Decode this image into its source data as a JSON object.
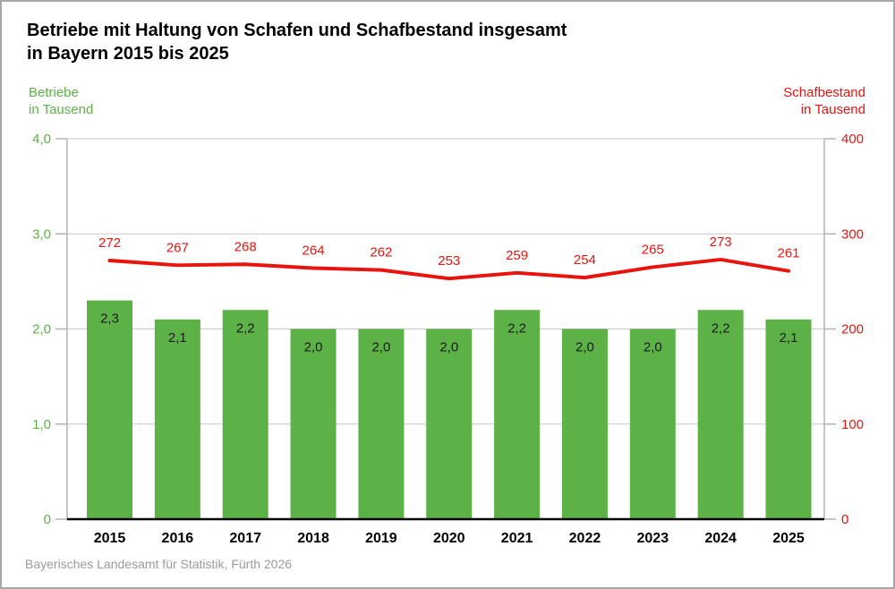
{
  "title": {
    "line1": "Betriebe mit Haltung von Schafen und Schafbestand insgesamt",
    "line2": "in Bayern 2015 bis 2025"
  },
  "footer": {
    "source": "Bayerisches Landesamt für Statistik, Fürth 2026"
  },
  "colors": {
    "bar_green": "#5cb247",
    "line_red": "#e8140e",
    "grid_gray": "#c9c9c9",
    "axis_gray": "#b3b3b3",
    "bottom_axis_black": "#000000",
    "bar_label_black": "#1a1a1a",
    "year_label_black": "#000000",
    "footer_gray": "#9a9a9a",
    "border_gray": "#a7a7a7"
  },
  "chart_data": {
    "type": "bar+line combo",
    "categories": [
      "2015",
      "2016",
      "2017",
      "2018",
      "2019",
      "2020",
      "2021",
      "2022",
      "2023",
      "2024",
      "2025"
    ],
    "series": [
      {
        "name": "Betriebe in Tausend",
        "type": "bar",
        "axis": "left",
        "color": "#5cb247",
        "values": [
          2.3,
          2.1,
          2.2,
          2.0,
          2.0,
          2.0,
          2.2,
          2.0,
          2.0,
          2.2,
          2.1
        ],
        "labels": [
          "2,3",
          "2,1",
          "2,2",
          "2,0",
          "2,0",
          "2,0",
          "2,2",
          "2,0",
          "2,0",
          "2,2",
          "2,1"
        ]
      },
      {
        "name": "Schafbestand in Tausend",
        "type": "line",
        "axis": "right",
        "color": "#e8140e",
        "values": [
          272,
          267,
          268,
          264,
          262,
          253,
          259,
          254,
          265,
          273,
          261
        ],
        "labels": [
          "272",
          "267",
          "268",
          "264",
          "262",
          "253",
          "259",
          "254",
          "265",
          "273",
          "261"
        ]
      }
    ],
    "left_axis": {
      "unit_line1": "Betriebe",
      "unit_line2": "in Tausend",
      "range": [
        0,
        4
      ],
      "ticks": [
        0,
        1,
        2,
        3,
        4
      ],
      "tick_labels": [
        "0",
        "1,0",
        "2,0",
        "3,0",
        "4,0"
      ]
    },
    "right_axis": {
      "unit_line1": "Schafbestand",
      "unit_line2": "in Tausend",
      "range": [
        0,
        400
      ],
      "ticks": [
        0,
        100,
        200,
        300,
        400
      ],
      "tick_labels": [
        "0",
        "100",
        "200",
        "300",
        "400"
      ]
    },
    "grid": true,
    "legend_position": "none"
  }
}
